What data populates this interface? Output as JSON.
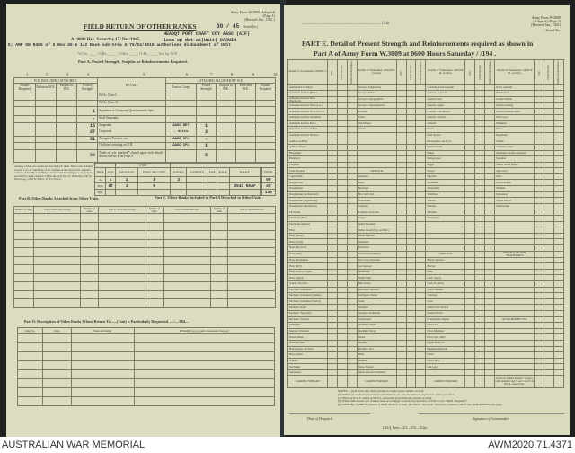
{
  "left_page": {
    "form_id": "Army Form W.3009 (Adapted)",
    "form_page": "(Page 1)",
    "form_revised": "(Revised Jan., 1941.)",
    "serial": "30 / 45",
    "serial_label": "(Serial No.)",
    "title": "FIELD RETURN OF OTHER RANKS",
    "unit_typed": "HEADQT PORT CRAFT COY AASC (AIF)",
    "time_line": "At 0600 Hrs. Saturday 15/ Dec/1945.",
    "unit_line_typed": "1sea cp det at(Unit) DARWIN",
    "authority_typed": "E; AMF SN 8405 of 2 Nov 45 & 142 Base sub Area & 75/24/6015 authorises disbandment of Unit",
    "attached_line": "W.Os. ____ O.Rs. ____ / Offrs. ____ O.Rs. ____ Att. by W.E.",
    "part_a": "Part A. Posted Strength, Surplus or Reinforcements Required.",
    "col_numbers": [
      "1",
      "2",
      "3",
      "4",
      "5",
      "6",
      "7",
      "8",
      "9",
      "10"
    ],
    "group_left": "W.E. INCLUDING ATTACHED.",
    "group_right": "ATTACHED ALLOWED BY W.E.",
    "headers_left": [
      "Details Required",
      "Deficient W.E.",
      "Surplus to W.E.",
      "Posted Strength"
    ],
    "header_detail": "DETAIL.",
    "headers_right": [
      "Arm or Corps.",
      "Posted Strength",
      "Surplus to W.E.",
      "Deficient W.E.",
      "Details Required"
    ],
    "rows": [
      {
        "detail": "W.Os. Class I.",
        "posted": "",
        "arm": "",
        "att": ""
      },
      {
        "detail": "W.Os. Class II.",
        "posted": "",
        "arm": "",
        "att": ""
      },
      {
        "detail": "Squadron or Company Quartermaster Sgts.",
        "posted": "1",
        "arm": "",
        "att": ""
      },
      {
        "detail": "Staff Sergeants",
        "posted": "-",
        "arm": "",
        "att": ""
      },
      {
        "detail": "Sergeants",
        "posted": "15",
        "arm": "AASC DET",
        "att": "1"
      },
      {
        "detail": "Corporals",
        "posted": "27",
        "arm": "- ditto",
        "att": "3"
      },
      {
        "detail": "Troopers, Privates, etc.",
        "posted": "51",
        "arm": "AASC CPL",
        "att": "-"
      },
      {
        "detail": "Civilians counting as O.R.",
        "posted": "",
        "arm": "AASC CPL",
        "att": "1"
      },
      {
        "detail": "Totals of cols. marked * should agree with details shown in Part E on Page 2",
        "posted": "94",
        "arm": "",
        "att": "5"
      }
    ],
    "note_text": "Analysis of Part A to be shown here by A.I.F. units. Their totals included in para. 2 of col. Variations of the columns of this return will complete analysis of Part B(1) and B(2). * A Personnel belonging to a category not provided for in the analysis will be shown in the col. Particulars will be shown, e.g., 10 U.K. Police, 11 N.Z. Police.",
    "analysis_headers": [
      "Detail",
      "A.I.F.",
      "Serv in A.I.F.",
      "Id Serv only C.M.F.",
      "A.W.A.S.",
      "A.A.M.W.S.",
      "Total",
      "R.A.N.",
      "R.A.A.F.",
      "",
      "TOTAL"
    ],
    "analysis_group": "C.M.F.",
    "analysis_rows": [
      [
        "A",
        "4",
        "2",
        "1",
        "2",
        "",
        "",
        "",
        "",
        "",
        "99"
      ],
      [
        "B(1)",
        "87",
        "3",
        "6",
        "",
        "",
        "",
        "",
        "2541 RAAF",
        "",
        "40"
      ],
      [
        "B(2)",
        "",
        "",
        "",
        "",
        "",
        "",
        "",
        "",
        "",
        "139"
      ]
    ],
    "part_b": "Part B.  Other Ranks Attached from Other Units.",
    "part_b_headers": [
      "Number of O.Rs.",
      "Unit to which they belong",
      "Number of O.Rs.",
      "Unit to which they belong"
    ],
    "part_c": "Part C.  Other Ranks Included in Part A Detached to Other Units.",
    "part_c_headers": [
      "Number of O.Rs.",
      "Unit to which detached",
      "Number of O.Rs.",
      "Unit to which detached"
    ],
    "part_d": "Part D.  Description of Other Ranks Whose Return To ......(Unit) is Particularly Requested. ..../..../194....",
    "part_d_headers": [
      "Army No.",
      "Rank",
      "Name and Initials",
      "REMARKS (e.g., present whereabouts if known)"
    ]
  },
  "right_page": {
    "unit_label": "Unit",
    "form_id": "Army Form W.3009",
    "form_page": "(Adapted) (Page 2)",
    "form_revised": "(Revised Jan., 1941)",
    "serial_label": "/ Serial No.",
    "title_1": "PART E.  Detail of Present Strength and Reinforcements required as shown in",
    "title_2": "Part A of Army Form W.3009 at 0600 Hours Saturday   /   /194  .",
    "sub_headers": [
      "W.E.",
      "Posted Strength",
      "Reinforcements Required"
    ],
    "groups": [
      {
        "header": "Details of Tradesmen. GROUP I.",
        "items": [
          "Ammunition Examiner",
          "Armament Artificer (Fitter)",
          "Armament Artificer Fitter (Electrical)",
          "Armament Artificer Fitter (A.A.)",
          "Armament Artificer Fitter (A.F.V.)",
          "Armament Artificer Instrument",
          "Armament Artificer Radio",
          "Armament Artificer Vehicle",
          "Armament Artificer Wireless",
          "Artificer, Artillery",
          "Artificer, Engine",
          "Blacksmith",
          "Bricklayer",
          "Carpenter",
          "Cook, Hospital",
          "Coppersmith",
          "Draughtsman",
          "Draughtsman",
          "Draughtsman (Architectural)",
          "Draughtsman (Engineering)",
          "Draughtsman (Mechanical)",
          "Electrician",
          "Electrician (M.T.)",
          "Electrician (Signals)",
          "Fitter",
          "Fitter (Diesel)",
          "Fitter (Cycle)",
          "Fitter (Electrical)",
          "Fitter (Gun)",
          "Fitter (Instrument)",
          "Fitter (M.T.)",
          "Fitter, Railway Engine",
          "Fitter, Signals",
          "Grinder, Precision",
          "Mechanic, Instrument",
          "Mechanic, Instrument (Signals)",
          "Mechanic, Instrument (Survey)",
          "Mechanic, Radio",
          "Mechanic, Typewriter",
          "Mechanic, Wireless",
          "Millwright",
          "Operator, Electrical",
          "Pattern Maker",
          "Plant Mechanic",
          "Photographer, Air Field",
          "Photo-printer",
          "Plumber",
          "Sail Maker",
          "Upholsterer"
        ],
        "carried": "CARRIED FORWARD"
      },
      {
        "header": "Details of Tradesmen. GROUP I. (contd.)",
        "items": [
          "Surveyor, Engineering",
          "Surveyor, R.E.S.",
          "Surveyor, Topographical",
          "Surveyor, Trigonometrical",
          "Tinsmith",
          "Turner",
          "Watchmaker",
          "Welder",
          "",
          "",
          "",
          "",
          "",
          "",
          "GROUP II.",
          "Armourer",
          "Baker",
          "Bricklayer",
          "Bn. Cond'r. Ind.",
          "Boilermaker",
          "Carpenter",
          "Carpenter and Joiner",
          "Cooper",
          "Dental Mechanic",
          "Driller (Rock) (Eng. and Mil.)",
          "Driver-Operator",
          "Draftsman",
          "Electrician",
          "Electrician (Engineer)",
          "Fire Control Operator",
          "Gas Operator",
          "Hairdresser",
          "Height Taker",
          "Hide Furrier",
          "Instrument Operator",
          "Intelligence Duties",
          "Joiner",
          "Linesman",
          "Linesman, Permanent",
          "Lithographer",
          "Machinist, Metal",
          "Machinist, Wood",
          "Mason",
          "Moulder",
          "Mechanic, M.T.",
          "Miner",
          "Moulder",
          "Nurse, Trained",
          "Observation Post Assistant"
        ],
        "carried": "CARRIED FORWARD"
      },
      {
        "header": "Details of Tradesmen. GROUP II. (contd.)",
        "items": [
          "Operating Room Assistant",
          "Operator, Keyboard",
          "Operator, Line",
          "Operator, Signal",
          "Operator, Switchboard",
          "Operator, Wireless",
          "Optician",
          "Painter",
          "Paint Sprayer",
          "Photographer, Air Force",
          "Position Finder",
          "Printer",
          "Radiographer",
          "Rigger",
          "Sawyer",
          "Signaller",
          "Shoemaker",
          "Telegraphist",
          "Wall Borer",
          "Wheeler",
          "Wireless",
          "Wireman",
          "Woodturner",
          "",
          "",
          "",
          "",
          "",
          "GROUP III.",
          "Battery Surveyor",
          "Butcher",
          "Clerk",
          "Clerk, Supply",
          "Clerk, Technical",
          "Coach Trimmer",
          "Concreter",
          "Cook",
          "Dental Clerk Orderly",
          "Despatch Rider",
          "Draughtsman, Signals",
          "Driver, I.C.",
          "Driver Mechanic",
          "Driver Opr., Plant",
          "Engine Hand, I.C.",
          "Equipment Repairer",
          "Farrier",
          "Fitter's Mate",
          "Gun Layer",
          ""
        ],
        "carried": "CARRIED FORWARD"
      },
      {
        "header": "Details of Tradesmen. GROUP III. (contd.)",
        "items": [
          "R.P.O. Assistant",
          "Hammerman",
          "Leather Stitcher",
          "Orderly, Nursing",
          "Orderly, Nursing Dental",
          "Plate Layer",
          "Pumpman",
          "Riveter",
          "Ropemaker",
          "Saddler",
          "Saddletree maker",
          "Shoemaker and Boot Repairer",
          "Storeman",
          "Striker, Steam Engine",
          "Sign-writer",
          "Tailor",
          "Textile Refitter",
          "Tinsmith",
          "Upholsterer",
          "Wagon Erector",
          "Wheelwright",
          "",
          "",
          "",
          "",
          "",
          "",
          "",
          "DETAILS OF NON-TRADESMEN.",
          "",
          "",
          "",
          "",
          "",
          "",
          "",
          "",
          "",
          "",
          "ATTACHED BY W.E.",
          "",
          "",
          "",
          "",
          "",
          "",
          "",
          "",
          ""
        ],
        "carried": "Totals of columns marked * to agree with columns 4 and 7, and 1 and 10 of Part A, respectively."
      }
    ],
    "notes": [
      "NOTES.—(a) If such other than privates is required give details on back.",
      "(b) Individual needs of personnel not included in col. 4 to be stated as required in clause provided.",
      "(c) Where A.W.A.S. and A.A.M.W.S. personnel are posted give details on back.",
      "(d) Where deficiencies not claimed state accordingly as shown by insertion of N.R. in col. \"Reinf. Required.\"",
      "(e) Where any request or solution is made on back of form, the words \"See back\" should be written in one of the blank spaces on this page."
    ],
    "date_label": "Date of Despatch",
    "signature_label": "Signature of Commander",
    "press_line": "L.H.Q. Press—411—8/41—312m."
  },
  "footer": {
    "institution": "AUSTRALIAN WAR MEMORIAL",
    "accession": "AWM2020.71.4371"
  }
}
